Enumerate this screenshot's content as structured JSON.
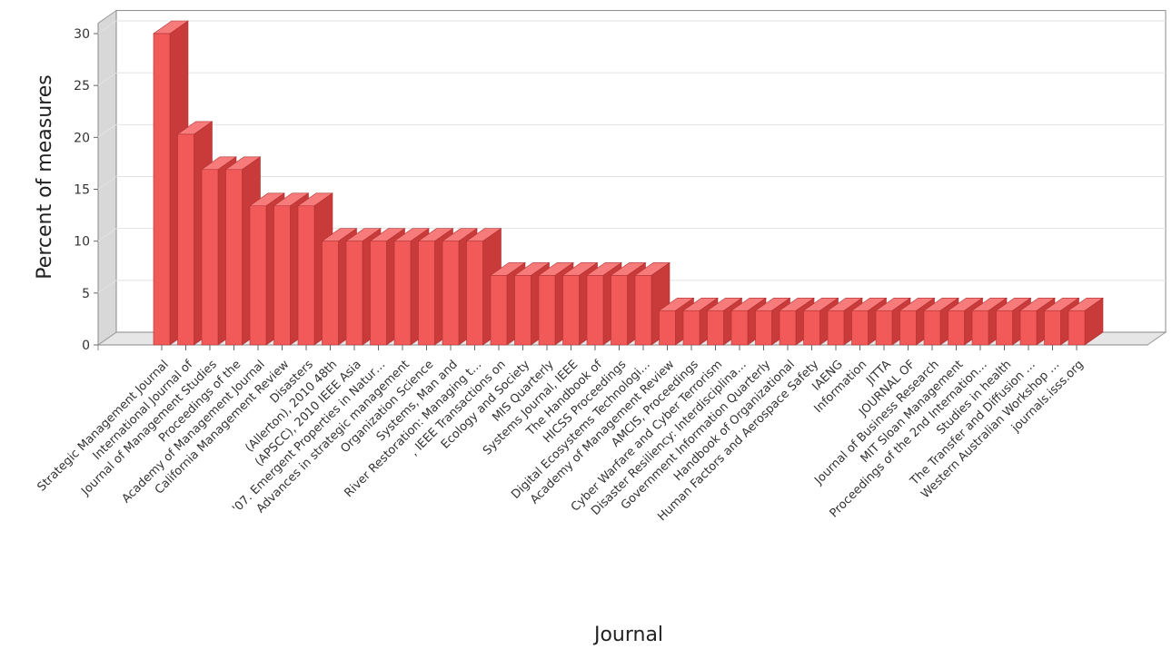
{
  "chart_data": {
    "type": "bar",
    "title": "",
    "xlabel": "Journal",
    "ylabel": "Percent of measures",
    "ylim": [
      0,
      31
    ],
    "yticks": [
      0,
      5,
      10,
      15,
      20,
      25,
      30
    ],
    "grid": true,
    "legend": "none",
    "style": "3d",
    "colors": {
      "bar_front": "#f25a5a",
      "bar_top": "#f77b7b",
      "bar_side": "#c93a3a",
      "floor": "#e6e6e6",
      "wall": "#d8d8d8",
      "grid": "#e2e2e2"
    },
    "categories": [
      "Strategic Management Journal",
      "International Journal of",
      "Journal of Management Studies",
      "Proceedings of the",
      "Academy of Management Journal",
      "California Management Review",
      "Disasters",
      "(Allerton), 2010 48th",
      "(APSCC), 2010 IEEE Asia",
      "'07. Emergent Properties in Natur…",
      "Advances in strategic management",
      "Organization Science",
      "Systems, Man and",
      "River Restoration: Managing t…",
      ", IEEE Transactions on",
      "Ecology and Society",
      "MIS Quarterly",
      "Systems Journal, IEEE",
      "The Handbook of",
      "HICSS Proceedings",
      "Digital Ecosystems Technologi…",
      "Academy of Management Review",
      "AMCIS, Proceedings",
      "Cyber Warfare and Cyber Terrorism",
      "Disaster Resiliency: Interdisciplina…",
      "Government Information Quarterly",
      "Handbook of Organizational",
      "Human Factors and Aerospace Safety",
      "IAENG",
      "Information",
      "JITTA",
      "JOURNAL OF",
      "Journal of Business Research",
      "MIT Sloan Management",
      "Proceedings of the 2nd Internation…",
      "Studies in health",
      "The Transfer and Diffusion …",
      "Western Australian Workshop …",
      "journals.isss.org"
    ],
    "values": [
      30,
      20.3,
      16.9,
      16.9,
      13.4,
      13.4,
      13.4,
      10.0,
      10.0,
      10.0,
      10.0,
      10.0,
      10.0,
      10.0,
      6.7,
      6.7,
      6.7,
      6.7,
      6.7,
      6.7,
      6.7,
      3.3,
      3.3,
      3.3,
      3.3,
      3.3,
      3.3,
      3.3,
      3.3,
      3.3,
      3.3,
      3.3,
      3.3,
      3.3,
      3.3,
      3.3,
      3.3,
      3.3,
      3.3
    ]
  }
}
